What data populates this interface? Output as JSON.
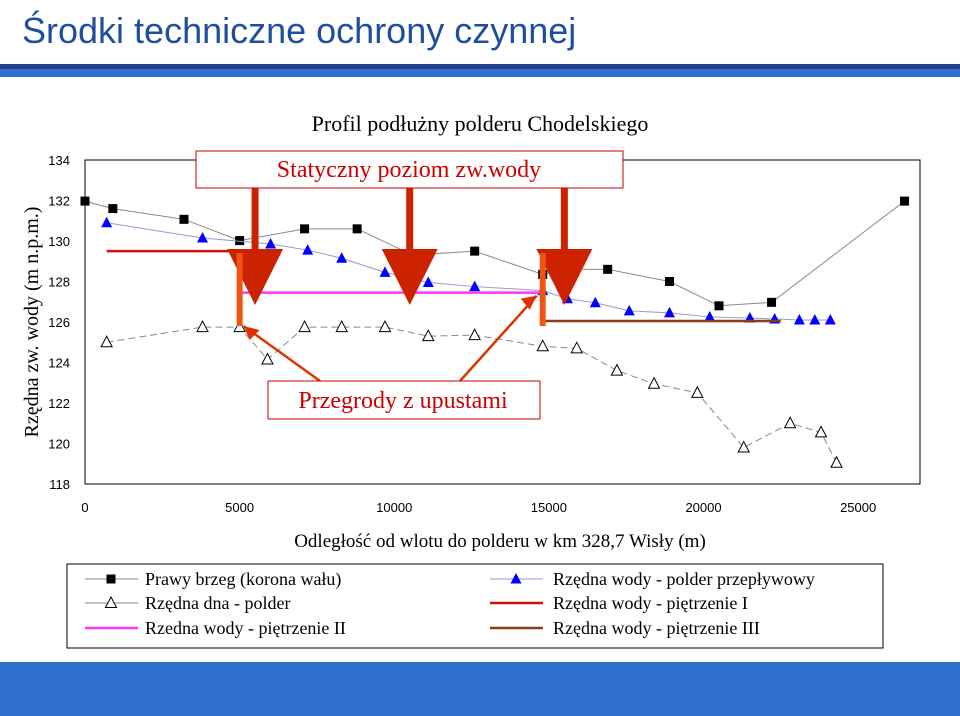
{
  "slide": {
    "title": "Środki techniczne ochrony czynnej"
  },
  "annotations": {
    "static_level": "Statyczny poziom zw.wody",
    "barriers": "Przegrody z upustami"
  },
  "colors": {
    "title_blue": "#1f4e9e",
    "band_dark": "#25408f",
    "band_blue": "#2f71cc",
    "arrow_dark_red": "#cc2200",
    "arrow_orange": "#ee5511",
    "marker_blue": "#0000ff",
    "level_I": "#cc1111",
    "level_II": "#ff33ff",
    "level_III": "#8b3a1a"
  },
  "chart_data": {
    "type": "line",
    "title": "Profil podłużny polderu Chodelskiego",
    "xlabel": "Odległość od wlotu do polderu w km 328,7 Wisły (m)",
    "ylabel": "Rzędna zw. wody (m n.p.m.)",
    "xlim": [
      0,
      27000
    ],
    "ylim": [
      118,
      134
    ],
    "xticks": [
      "0",
      "5000",
      "10000",
      "15000",
      "20000",
      "25000"
    ],
    "yticks": [
      "118",
      "120",
      "122",
      "124",
      "126",
      "128",
      "130",
      "132",
      "134"
    ],
    "series": [
      {
        "name": "Prawy brzeg (korona wału)",
        "marker": "square",
        "x": [
          0,
          900,
          3200,
          5000,
          7100,
          8800,
          10600,
          12600,
          14800,
          15600,
          16900,
          18900,
          20500,
          22200,
          26500
        ],
        "y": [
          131.97,
          131.6,
          131.07,
          130.02,
          130.6,
          130.6,
          129.3,
          129.5,
          128.35,
          128.6,
          128.6,
          128.0,
          126.8,
          126.97,
          131.97
        ]
      },
      {
        "name": "Rzędna wody - polder przepływowy",
        "marker": "triangle-filled",
        "x": [
          700,
          3800,
          6000,
          7200,
          8300,
          9700,
          11100,
          12600,
          14800,
          15600,
          16500,
          17600,
          18900,
          20200,
          21500,
          22300,
          23100,
          23600,
          24100
        ],
        "y": [
          130.9,
          130.15,
          129.85,
          129.55,
          129.15,
          128.45,
          127.95,
          127.75,
          127.55,
          127.15,
          126.95,
          126.55,
          126.45,
          126.25,
          126.2,
          126.15,
          126.1,
          126.1,
          126.1
        ]
      },
      {
        "name": "Rzędna dna - polder",
        "marker": "triangle-open",
        "x": [
          700,
          3800,
          5000,
          5900,
          7100,
          8300,
          9700,
          11100,
          12600,
          14800,
          15900,
          17200,
          18400,
          19800,
          21300,
          22800,
          23800,
          24300
        ],
        "y": [
          125.0,
          125.75,
          125.75,
          124.15,
          125.75,
          125.75,
          125.75,
          125.3,
          125.35,
          124.8,
          124.7,
          123.6,
          122.95,
          122.5,
          119.8,
          121.0,
          120.55,
          119.05
        ]
      },
      {
        "name": "Rzędna wody - piętrzenie I",
        "color": "#cc1111",
        "x": [
          700,
          5000
        ],
        "y": [
          129.5,
          129.5
        ]
      },
      {
        "name": "Rzedna wody - piętrzenie II",
        "color": "#ff33ff",
        "x": [
          5000,
          14800
        ],
        "y": [
          127.45,
          127.45
        ]
      },
      {
        "name": "Rzędna wody - piętrzenie III",
        "color": "#8b3a1a",
        "x": [
          14800,
          22500
        ],
        "y": [
          126.05,
          126.05
        ]
      }
    ],
    "legend": {
      "placement": "bottom",
      "entries": [
        {
          "label": "Prawy brzeg (korona wału)",
          "symbol": "square"
        },
        {
          "label": "Rzędna wody - polder przepływowy",
          "symbol": "triangle-filled"
        },
        {
          "label": "Rzędna dna - polder",
          "symbol": "triangle-open"
        },
        {
          "label": "Rzędna wody - piętrzenie I",
          "symbol": "line",
          "color": "#cc1111"
        },
        {
          "label": "Rzedna wody - piętrzenie II",
          "symbol": "line",
          "color": "#ff33ff"
        },
        {
          "label": "Rzędna wody - piętrzenie III",
          "symbol": "line",
          "color": "#8b3a1a"
        }
      ]
    },
    "static_arrow_positions": [
      5500,
      10500,
      15500
    ],
    "barrier_positions": [
      5000,
      14800
    ]
  }
}
